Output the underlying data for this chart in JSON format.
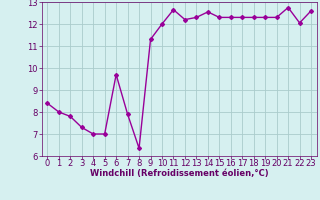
{
  "x": [
    0,
    1,
    2,
    3,
    4,
    5,
    6,
    7,
    8,
    9,
    10,
    11,
    12,
    13,
    14,
    15,
    16,
    17,
    18,
    19,
    20,
    21,
    22,
    23
  ],
  "y": [
    8.4,
    8.0,
    7.8,
    7.3,
    7.0,
    7.0,
    9.7,
    7.9,
    6.35,
    11.3,
    12.0,
    12.65,
    12.2,
    12.3,
    12.55,
    12.3,
    12.3,
    12.3,
    12.3,
    12.3,
    12.3,
    12.75,
    12.05,
    12.6
  ],
  "line_color": "#990099",
  "marker": "D",
  "marker_size": 2,
  "linewidth": 1.0,
  "bg_color": "#d6f0f0",
  "grid_color": "#aacccc",
  "xlabel": "Windchill (Refroidissement éolien,°C)",
  "xlabel_color": "#660066",
  "xlabel_fontsize": 6,
  "tick_color": "#660066",
  "tick_fontsize": 6,
  "ylim": [
    6,
    13
  ],
  "yticks": [
    6,
    7,
    8,
    9,
    10,
    11,
    12,
    13
  ],
  "xticks": [
    0,
    1,
    2,
    3,
    4,
    5,
    6,
    7,
    8,
    9,
    10,
    11,
    12,
    13,
    14,
    15,
    16,
    17,
    18,
    19,
    20,
    21,
    22,
    23
  ],
  "xlim": [
    -0.5,
    23.5
  ]
}
